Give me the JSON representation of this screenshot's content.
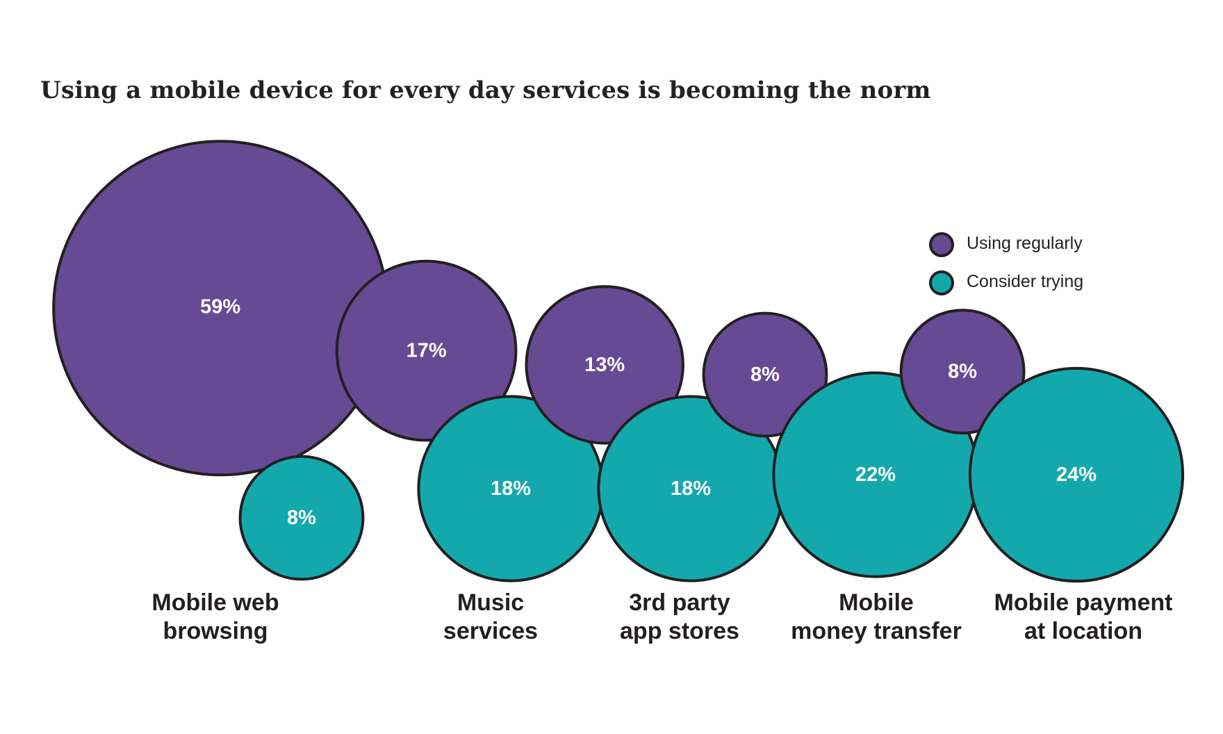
{
  "chart_data": {
    "type": "bubble",
    "title": "Using a mobile device for every day services is becoming the norm",
    "categories": [
      [
        "Mobile web",
        "browsing"
      ],
      [
        "Music",
        "services"
      ],
      [
        "3rd party",
        "app stores"
      ],
      [
        "Mobile",
        "money transfer"
      ],
      [
        "Mobile payment",
        "at location"
      ]
    ],
    "series": [
      {
        "name": "Using regularly",
        "values": [
          59,
          17,
          13,
          8,
          8
        ],
        "labels": [
          "59%",
          "17%",
          "13%",
          "8%",
          "8%"
        ],
        "color": "#674a94"
      },
      {
        "name": "Consider trying",
        "values": [
          8,
          18,
          18,
          22,
          24
        ],
        "labels": [
          "8%",
          "18%",
          "18%",
          "22%",
          "24%"
        ],
        "color": "#13a9ac"
      }
    ],
    "legend_position": "top-right",
    "outline_color": "#231f20"
  }
}
